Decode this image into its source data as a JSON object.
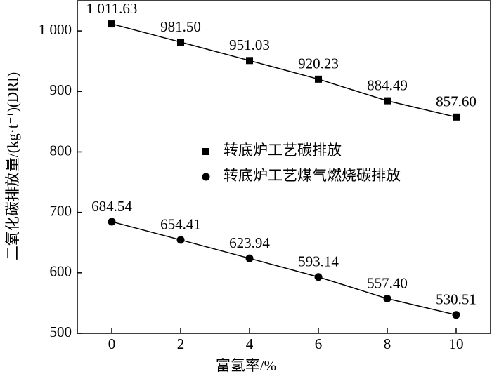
{
  "chart_data": {
    "type": "line",
    "x_label": "富氢率/%",
    "y_label": "二氧化碳排放量/(kg·t⁻¹)(DRI)",
    "x": [
      0,
      2,
      4,
      6,
      8,
      10
    ],
    "series": [
      {
        "name": "转底炉工艺碳排放",
        "color": "#000000",
        "marker": "square",
        "values": [
          1011.63,
          981.5,
          951.03,
          920.23,
          884.49,
          857.6
        ],
        "value_labels": [
          "1 011.63",
          "981.50",
          "951.03",
          "920.23",
          "884.49",
          "857.60"
        ]
      },
      {
        "name": "转底炉工艺煤气燃烧碳排放",
        "color": "#000000",
        "marker": "circle",
        "values": [
          684.54,
          654.41,
          623.94,
          593.14,
          557.4,
          530.51
        ],
        "value_labels": [
          "684.54",
          "654.41",
          "623.94",
          "593.14",
          "557.40",
          "530.51"
        ]
      }
    ],
    "xlim": [
      -1,
      11
    ],
    "xticks": [
      0,
      2,
      4,
      6,
      8,
      10
    ],
    "ylim": [
      500,
      1050
    ],
    "yticks": [
      500,
      600,
      700,
      800,
      900,
      {
        "value": 1000,
        "label": "1 000"
      }
    ],
    "legend": "center"
  }
}
